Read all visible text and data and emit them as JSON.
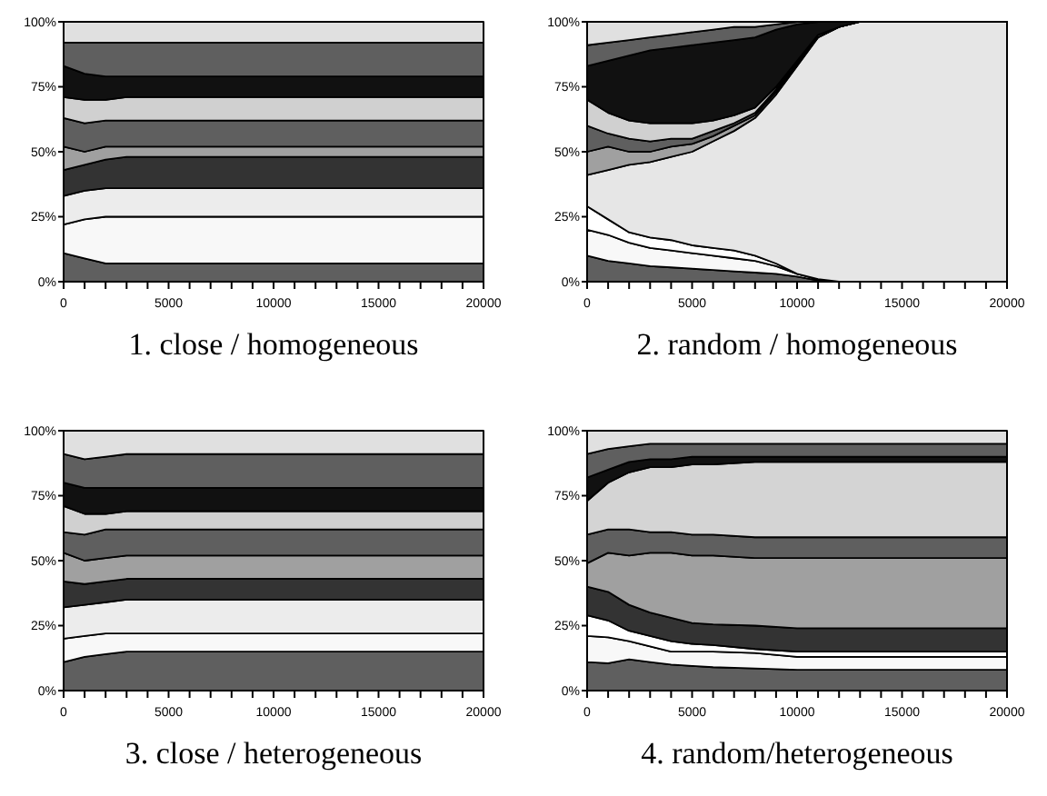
{
  "chart_data": [
    {
      "type": "area",
      "stacked": true,
      "title": "1. close / homogeneous",
      "x": [
        0,
        1000,
        2000,
        3000,
        20000
      ],
      "xlim": [
        0,
        20000
      ],
      "xticks": [
        0,
        {
          "value": 1000,
          "label": null
        },
        {
          "value": 2000,
          "label": null
        },
        {
          "value": 3000,
          "label": null
        },
        {
          "value": 4000,
          "label": null
        },
        5000,
        {
          "value": 6000,
          "label": null
        },
        {
          "value": 7000,
          "label": null
        },
        {
          "value": 8000,
          "label": null
        },
        {
          "value": 9000,
          "label": null
        },
        10000,
        {
          "value": 11000,
          "label": null
        },
        {
          "value": 12000,
          "label": null
        },
        {
          "value": 13000,
          "label": null
        },
        {
          "value": 14000,
          "label": null
        },
        15000,
        {
          "value": 16000,
          "label": null
        },
        {
          "value": 17000,
          "label": null
        },
        {
          "value": 18000,
          "label": null
        },
        {
          "value": 19000,
          "label": null
        },
        20000
      ],
      "ylim": [
        0,
        100
      ],
      "yticks": [
        {
          "value": 0,
          "label": "0%"
        },
        {
          "value": 25,
          "label": "25%"
        },
        {
          "value": 50,
          "label": "50%"
        },
        {
          "value": 75,
          "label": "75%"
        },
        {
          "value": 100,
          "label": "100%"
        }
      ],
      "series": [
        {
          "color": "#5f5f5f",
          "values": [
            11,
            9,
            7,
            7,
            7
          ]
        },
        {
          "color": "#f8f8f8",
          "values": [
            11,
            15,
            18,
            18,
            18
          ]
        },
        {
          "color": "#ececec",
          "values": [
            11,
            11,
            11,
            11,
            11
          ]
        },
        {
          "color": "#333333",
          "values": [
            10,
            10,
            11,
            12,
            12
          ]
        },
        {
          "color": "#a0a0a0",
          "values": [
            9,
            5,
            5,
            4,
            4
          ]
        },
        {
          "color": "#5f5f5f",
          "values": [
            11,
            11,
            10,
            10,
            10
          ]
        },
        {
          "color": "#d0d0d0",
          "values": [
            8,
            9,
            8,
            9,
            9
          ]
        },
        {
          "color": "#111111",
          "values": [
            12,
            10,
            9,
            8,
            8
          ]
        },
        {
          "color": "#5f5f5f",
          "values": [
            9,
            12,
            13,
            13,
            13
          ]
        },
        {
          "color": "#e0e0e0",
          "values": [
            8,
            8,
            8,
            8,
            8
          ]
        }
      ]
    },
    {
      "type": "area",
      "stacked": true,
      "title": "2. random / homogeneous",
      "x": [
        0,
        1000,
        2000,
        3000,
        4000,
        5000,
        6000,
        7000,
        8000,
        9000,
        10000,
        11000,
        12000,
        13000,
        20000
      ],
      "xlim": [
        0,
        20000
      ],
      "xticks": [
        0,
        {
          "value": 1000,
          "label": null
        },
        {
          "value": 2000,
          "label": null
        },
        {
          "value": 3000,
          "label": null
        },
        {
          "value": 4000,
          "label": null
        },
        5000,
        {
          "value": 6000,
          "label": null
        },
        {
          "value": 7000,
          "label": null
        },
        {
          "value": 8000,
          "label": null
        },
        {
          "value": 9000,
          "label": null
        },
        10000,
        {
          "value": 11000,
          "label": null
        },
        {
          "value": 12000,
          "label": null
        },
        {
          "value": 13000,
          "label": null
        },
        {
          "value": 14000,
          "label": null
        },
        15000,
        {
          "value": 16000,
          "label": null
        },
        {
          "value": 17000,
          "label": null
        },
        {
          "value": 18000,
          "label": null
        },
        {
          "value": 19000,
          "label": null
        },
        20000
      ],
      "ylim": [
        0,
        100
      ],
      "yticks": [
        {
          "value": 0,
          "label": "0%"
        },
        {
          "value": 25,
          "label": "25%"
        },
        {
          "value": 50,
          "label": "50%"
        },
        {
          "value": 75,
          "label": "75%"
        },
        {
          "value": 100,
          "label": "100%"
        }
      ],
      "series": [
        {
          "color": "#5f5f5f",
          "values": [
            10,
            8,
            7,
            6,
            5.5,
            5,
            4.5,
            4,
            3.5,
            3,
            2,
            0.5,
            0,
            0,
            0
          ]
        },
        {
          "color": "#f8f8f8",
          "values": [
            10,
            10,
            8,
            7,
            6.5,
            6,
            5.5,
            5,
            4.5,
            3,
            1,
            0.5,
            0,
            0,
            0
          ]
        },
        {
          "color": "#ffffff",
          "values": [
            9,
            6,
            4,
            4,
            4,
            3,
            3,
            3,
            2,
            1,
            0,
            0,
            0,
            0,
            0
          ]
        },
        {
          "color": "#e6e6e6",
          "values": [
            12,
            19,
            26,
            29,
            32,
            36,
            41,
            46,
            53,
            65,
            80,
            93,
            98,
            100,
            100
          ]
        },
        {
          "color": "#a0a0a0",
          "values": [
            9,
            9,
            5,
            4,
            4,
            3,
            2,
            2,
            1,
            1,
            1,
            0,
            0,
            0,
            0
          ]
        },
        {
          "color": "#5f5f5f",
          "values": [
            10,
            5,
            5,
            4,
            3,
            2,
            2,
            1,
            1,
            1,
            0,
            1,
            0,
            0,
            0
          ]
        },
        {
          "color": "#d0d0d0",
          "values": [
            10,
            8,
            7,
            7,
            6,
            6,
            4,
            3,
            2,
            1,
            1,
            0,
            0,
            0,
            0
          ]
        },
        {
          "color": "#111111",
          "values": [
            13,
            20,
            25,
            28,
            29,
            30,
            30,
            29,
            27,
            22,
            14,
            5,
            2,
            0,
            0
          ]
        },
        {
          "color": "#5f5f5f",
          "values": [
            8,
            7,
            6,
            5,
            5,
            5,
            5,
            5,
            4,
            2,
            1,
            0,
            0,
            0,
            0
          ]
        },
        {
          "color": "#e0e0e0",
          "values": [
            9,
            8,
            7,
            6,
            5,
            4,
            3,
            2,
            2,
            1,
            0,
            0,
            0,
            0,
            0
          ]
        }
      ]
    },
    {
      "type": "area",
      "stacked": true,
      "title": "3. close / heterogeneous",
      "x": [
        0,
        1000,
        2000,
        3000,
        20000
      ],
      "xlim": [
        0,
        20000
      ],
      "xticks": [
        0,
        {
          "value": 1000,
          "label": null
        },
        {
          "value": 2000,
          "label": null
        },
        {
          "value": 3000,
          "label": null
        },
        {
          "value": 4000,
          "label": null
        },
        5000,
        {
          "value": 6000,
          "label": null
        },
        {
          "value": 7000,
          "label": null
        },
        {
          "value": 8000,
          "label": null
        },
        {
          "value": 9000,
          "label": null
        },
        10000,
        {
          "value": 11000,
          "label": null
        },
        {
          "value": 12000,
          "label": null
        },
        {
          "value": 13000,
          "label": null
        },
        {
          "value": 14000,
          "label": null
        },
        15000,
        {
          "value": 16000,
          "label": null
        },
        {
          "value": 17000,
          "label": null
        },
        {
          "value": 18000,
          "label": null
        },
        {
          "value": 19000,
          "label": null
        },
        20000
      ],
      "ylim": [
        0,
        100
      ],
      "yticks": [
        {
          "value": 0,
          "label": "0%"
        },
        {
          "value": 25,
          "label": "25%"
        },
        {
          "value": 50,
          "label": "50%"
        },
        {
          "value": 75,
          "label": "75%"
        },
        {
          "value": 100,
          "label": "100%"
        }
      ],
      "series": [
        {
          "color": "#5f5f5f",
          "values": [
            11,
            13,
            14,
            15,
            15
          ]
        },
        {
          "color": "#f8f8f8",
          "values": [
            9,
            8,
            8,
            7,
            7
          ]
        },
        {
          "color": "#ececec",
          "values": [
            12,
            12,
            12,
            13,
            13
          ]
        },
        {
          "color": "#333333",
          "values": [
            10,
            8,
            8,
            8,
            8
          ]
        },
        {
          "color": "#a0a0a0",
          "values": [
            11,
            9,
            9,
            9,
            9
          ]
        },
        {
          "color": "#5f5f5f",
          "values": [
            8,
            10,
            11,
            10,
            10
          ]
        },
        {
          "color": "#d0d0d0",
          "values": [
            10,
            8,
            6,
            7,
            7
          ]
        },
        {
          "color": "#111111",
          "values": [
            9,
            10,
            10,
            9,
            9
          ]
        },
        {
          "color": "#5f5f5f",
          "values": [
            11,
            11,
            12,
            13,
            13
          ]
        },
        {
          "color": "#e0e0e0",
          "values": [
            9,
            11,
            10,
            9,
            9
          ]
        }
      ]
    },
    {
      "type": "area",
      "stacked": true,
      "title": "4. random/heterogeneous",
      "x": [
        0,
        1000,
        2000,
        3000,
        4000,
        5000,
        6000,
        8000,
        10000,
        20000
      ],
      "xlim": [
        0,
        20000
      ],
      "xticks": [
        0,
        {
          "value": 1000,
          "label": null
        },
        {
          "value": 2000,
          "label": null
        },
        {
          "value": 3000,
          "label": null
        },
        {
          "value": 4000,
          "label": null
        },
        5000,
        {
          "value": 6000,
          "label": null
        },
        {
          "value": 7000,
          "label": null
        },
        {
          "value": 8000,
          "label": null
        },
        {
          "value": 9000,
          "label": null
        },
        10000,
        {
          "value": 11000,
          "label": null
        },
        {
          "value": 12000,
          "label": null
        },
        {
          "value": 13000,
          "label": null
        },
        {
          "value": 14000,
          "label": null
        },
        15000,
        {
          "value": 16000,
          "label": null
        },
        {
          "value": 17000,
          "label": null
        },
        {
          "value": 18000,
          "label": null
        },
        {
          "value": 19000,
          "label": null
        },
        20000
      ],
      "ylim": [
        0,
        100
      ],
      "yticks": [
        {
          "value": 0,
          "label": "0%"
        },
        {
          "value": 25,
          "label": "25%"
        },
        {
          "value": 50,
          "label": "50%"
        },
        {
          "value": 75,
          "label": "75%"
        },
        {
          "value": 100,
          "label": "100%"
        }
      ],
      "series": [
        {
          "color": "#5f5f5f",
          "values": [
            11,
            10.5,
            12,
            11,
            10,
            9.5,
            9,
            8.5,
            8,
            8
          ]
        },
        {
          "color": "#f8f8f8",
          "values": [
            10,
            10,
            7,
            6,
            5,
            5.5,
            6,
            6,
            5,
            5
          ]
        },
        {
          "color": "#ffffff",
          "values": [
            8,
            6.5,
            4,
            4,
            4,
            3,
            2.5,
            1.5,
            2,
            2
          ]
        },
        {
          "color": "#333333",
          "values": [
            11,
            11,
            10,
            9,
            9,
            8,
            8,
            9,
            9,
            9
          ]
        },
        {
          "color": "#a0a0a0",
          "values": [
            9,
            15,
            19,
            23,
            25,
            26,
            26.5,
            26,
            27,
            27
          ]
        },
        {
          "color": "#5f5f5f",
          "values": [
            11,
            9,
            10,
            8,
            8,
            8,
            8,
            8,
            8,
            8
          ]
        },
        {
          "color": "#d4d4d4",
          "values": [
            13,
            18,
            22,
            25,
            25,
            27,
            27,
            29,
            29,
            29
          ]
        },
        {
          "color": "#111111",
          "values": [
            9,
            5,
            4,
            3,
            3,
            3,
            3,
            2,
            2,
            2
          ]
        },
        {
          "color": "#5f5f5f",
          "values": [
            9,
            8,
            6,
            6,
            6,
            5,
            5,
            5,
            5,
            5
          ]
        },
        {
          "color": "#e0e0e0",
          "values": [
            9,
            7,
            6,
            5,
            5,
            5,
            5,
            5,
            5,
            5
          ]
        }
      ]
    }
  ]
}
